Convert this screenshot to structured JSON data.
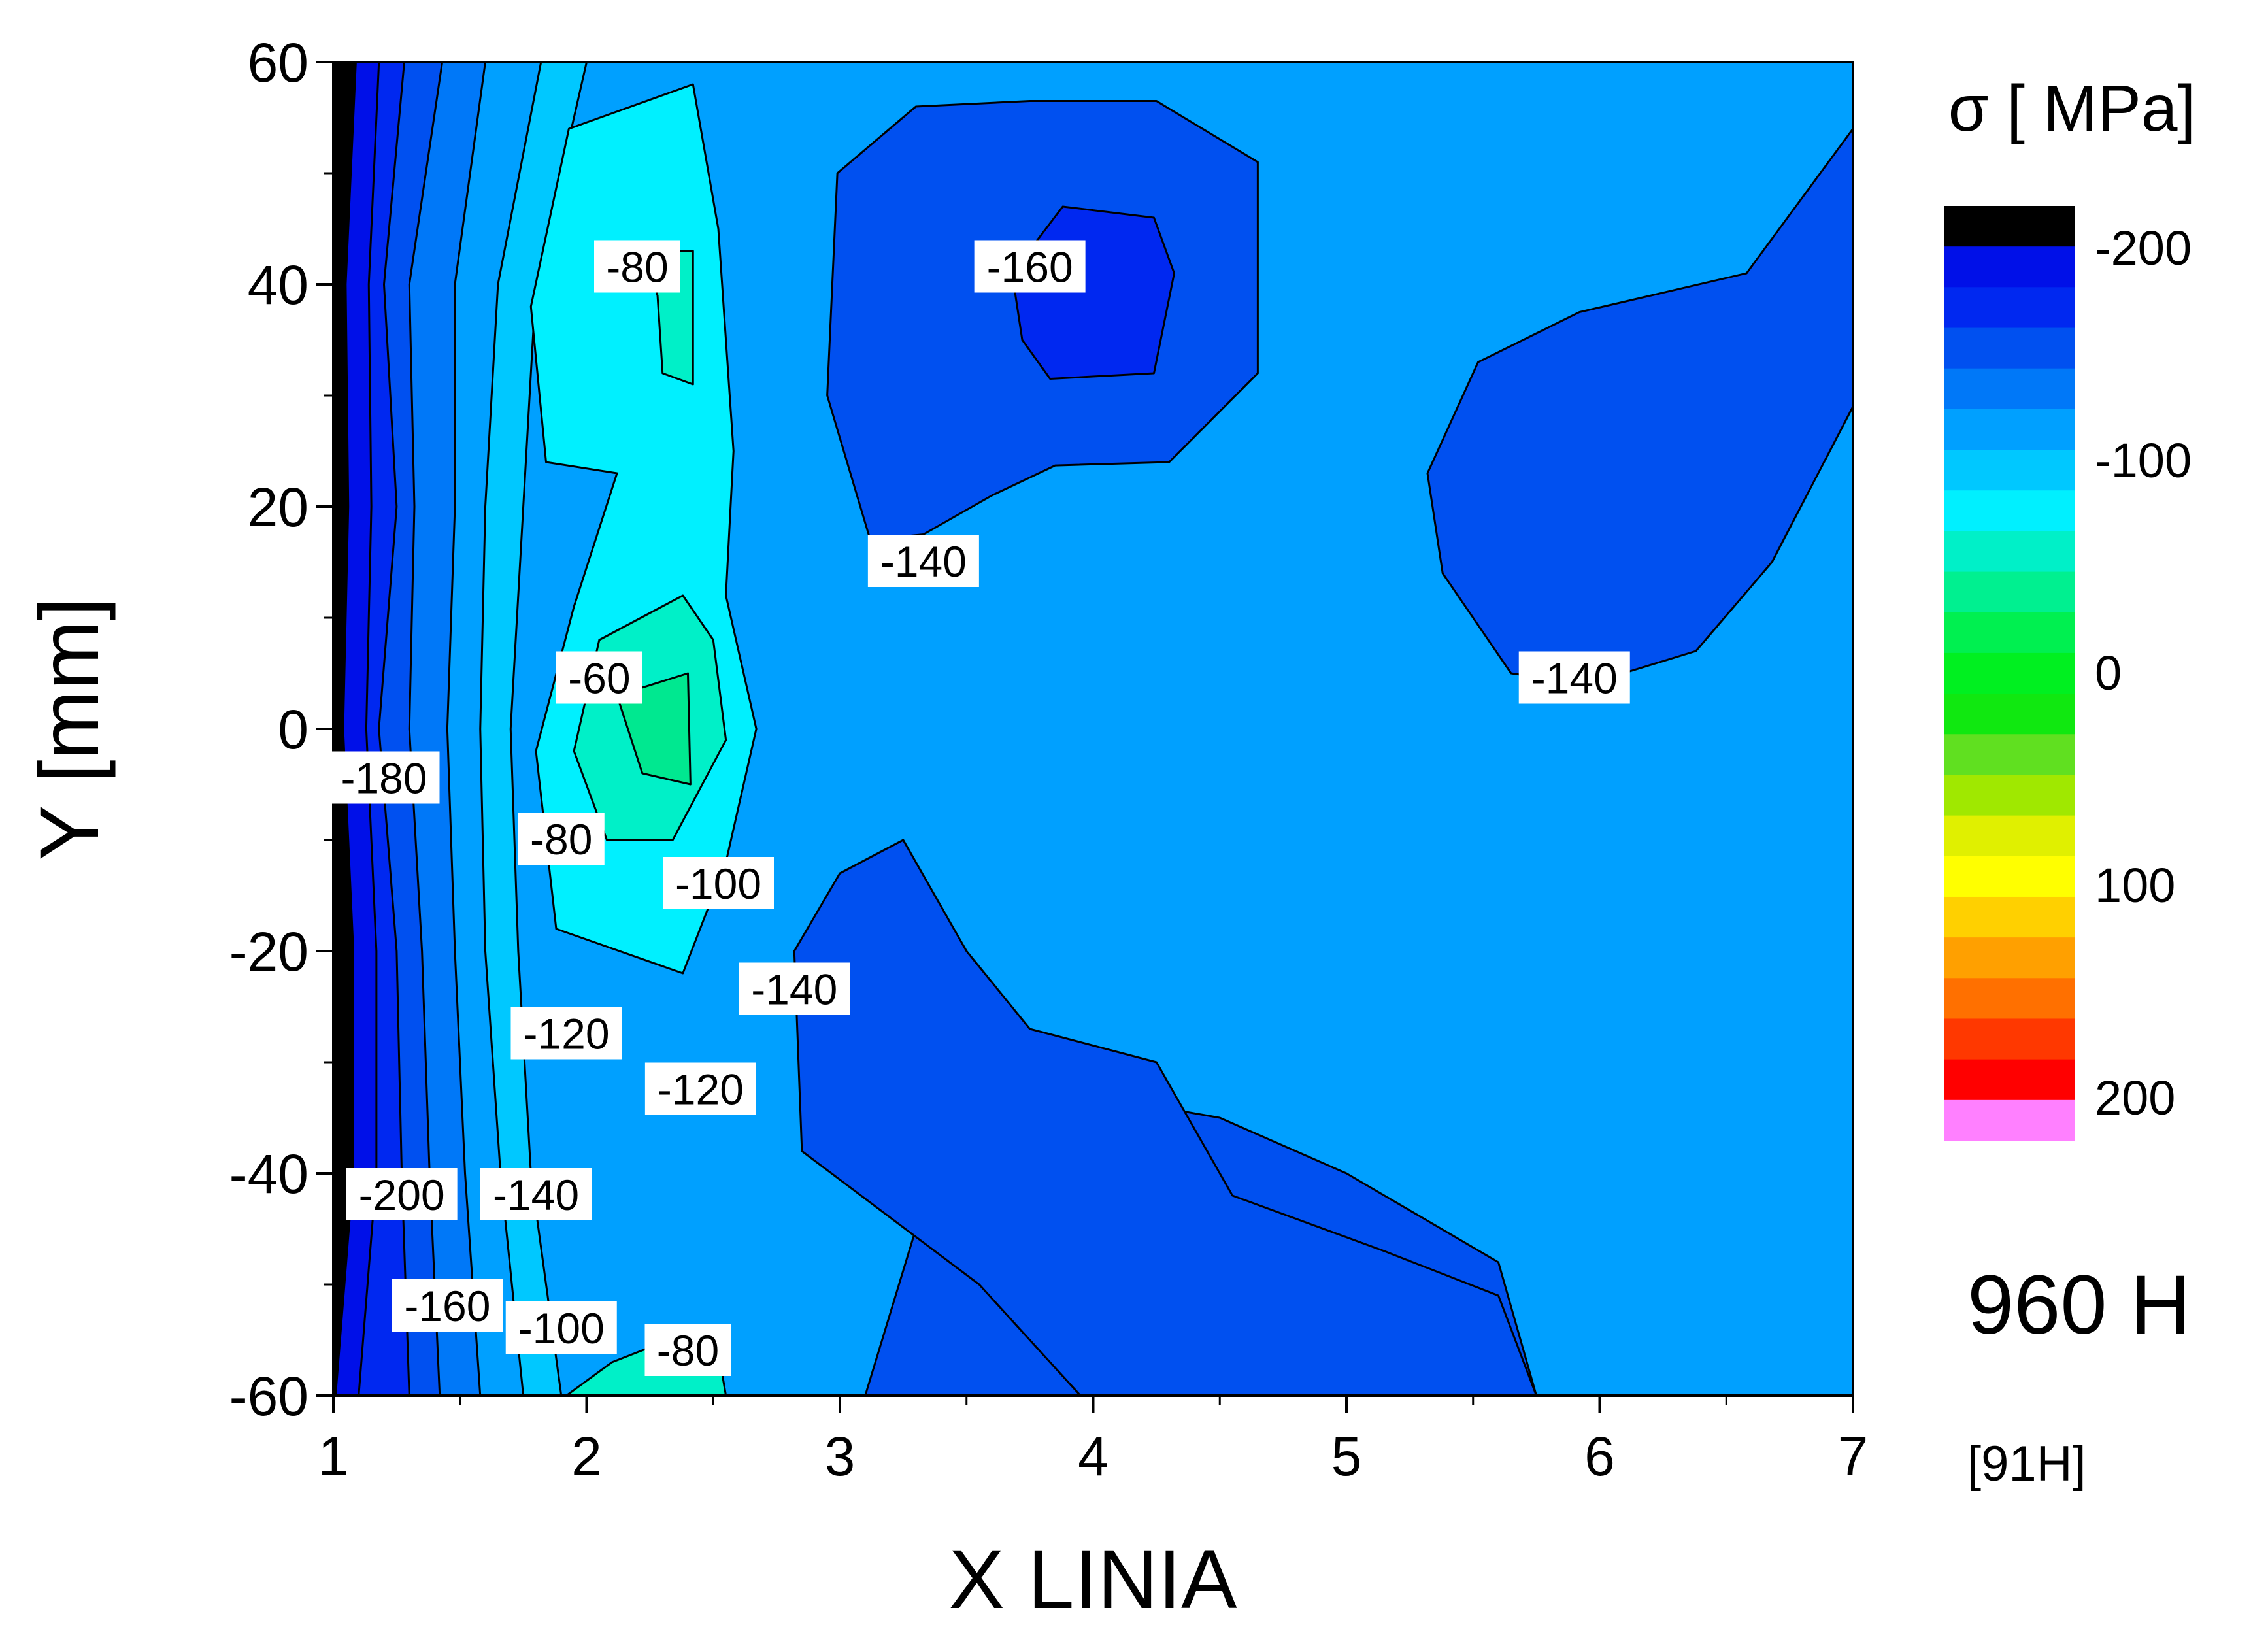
{
  "chart_data": {
    "type": "heatmap",
    "subtype": "filled-contour",
    "title": "",
    "xlabel": "X LINIA",
    "ylabel": "Y [mm]",
    "xlim": [
      1,
      7
    ],
    "ylim": [
      -60,
      60
    ],
    "x_ticks": [
      1,
      2,
      3,
      4,
      5,
      6,
      7
    ],
    "y_ticks": [
      -60,
      -40,
      -20,
      0,
      20,
      40,
      60
    ],
    "colorbar": {
      "title": "σ [ MPa]",
      "range": [
        -220,
        220
      ],
      "step": 20,
      "tick_labels": [
        "-200",
        "-100",
        "0",
        "100",
        "200"
      ],
      "tick_values": [
        -200,
        -100,
        0,
        100,
        200
      ],
      "colors": [
        "#000000",
        "#0010e8",
        "#0028f0",
        "#0050f0",
        "#0078f8",
        "#00a0ff",
        "#00c8ff",
        "#00f0ff",
        "#00f0c8",
        "#00f090",
        "#00f050",
        "#00f020",
        "#10e810",
        "#60e020",
        "#a0e800",
        "#e0f000",
        "#ffff00",
        "#ffd000",
        "#ffa000",
        "#ff7000",
        "#ff3800",
        "#ff0000",
        "#ff80ff"
      ]
    },
    "levels": [
      {
        "value": -200,
        "label": "-200",
        "color": "#0010e8"
      },
      {
        "value": -180,
        "label": "-180",
        "color": "#0028f0"
      },
      {
        "value": -160,
        "label": "-160",
        "color": "#0050f0"
      },
      {
        "value": -140,
        "label": "-140",
        "color": "#0078f8"
      },
      {
        "value": -120,
        "label": "-120",
        "color": "#00a0ff"
      },
      {
        "value": -100,
        "label": "-100",
        "color": "#00c8ff"
      },
      {
        "value": -80,
        "label": "-80",
        "color": "#00f0ff"
      },
      {
        "value": -60,
        "label": "-60",
        "color": "#00f0c8"
      }
    ],
    "contours": [
      {
        "level": -200,
        "fill": "#0010e8",
        "points": [
          [
            1.1,
            -60
          ],
          [
            1.17,
            -40
          ],
          [
            1.17,
            -20
          ],
          [
            1.13,
            0
          ],
          [
            1.15,
            20
          ],
          [
            1.14,
            40
          ],
          [
            1.18,
            60
          ],
          [
            1,
            60
          ],
          [
            1,
            -60
          ]
        ],
        "closed": false
      },
      {
        "level": -180,
        "fill": "#0028f0",
        "points": [
          [
            1.3,
            -60
          ],
          [
            1.27,
            -40
          ],
          [
            1.25,
            -20
          ],
          [
            1.18,
            0
          ],
          [
            1.25,
            20
          ],
          [
            1.2,
            40
          ],
          [
            1.28,
            60
          ]
        ],
        "closed": false
      },
      {
        "level": -160,
        "fill": "#0050f0",
        "points": [
          [
            1.42,
            -60
          ],
          [
            1.38,
            -40
          ],
          [
            1.35,
            -20
          ],
          [
            1.3,
            0
          ],
          [
            1.32,
            20
          ],
          [
            1.3,
            40
          ],
          [
            1.43,
            60
          ]
        ],
        "closed": false
      },
      {
        "level": -140,
        "fill": "#0078f8",
        "points": [
          [
            1.58,
            -60
          ],
          [
            1.52,
            -40
          ],
          [
            1.48,
            -20
          ],
          [
            1.45,
            0
          ],
          [
            1.48,
            20
          ],
          [
            1.48,
            40
          ],
          [
            1.6,
            60
          ]
        ],
        "closed": false
      },
      {
        "level": -120,
        "fill": "#00a0ff",
        "points": [
          [
            1.75,
            -60
          ],
          [
            1.66,
            -40
          ],
          [
            1.6,
            -20
          ],
          [
            1.58,
            0
          ],
          [
            1.6,
            20
          ],
          [
            1.65,
            40
          ],
          [
            1.82,
            60
          ]
        ],
        "closed": false
      },
      {
        "level": -100,
        "fill": "#00c8ff",
        "points": [
          [
            1.9,
            -60
          ],
          [
            1.78,
            -40
          ],
          [
            1.73,
            -20
          ],
          [
            1.7,
            0
          ],
          [
            1.75,
            20
          ],
          [
            1.8,
            40
          ],
          [
            2.0,
            60
          ]
        ],
        "closed": false
      }
    ],
    "regions": [
      {
        "level": -160,
        "fill": "#0050f0",
        "points": [
          [
            3.1,
            -60
          ],
          [
            3.3,
            -45
          ],
          [
            3.5,
            -35
          ],
          [
            4.0,
            -33
          ],
          [
            4.5,
            -35
          ],
          [
            5.0,
            -40
          ],
          [
            5.6,
            -48
          ],
          [
            5.75,
            -60
          ]
        ]
      },
      {
        "level": -160,
        "fill": "#0050f0",
        "points": [
          [
            3.25,
            -10
          ],
          [
            3.5,
            -20
          ],
          [
            3.75,
            -27
          ],
          [
            4.25,
            -30
          ],
          [
            4.55,
            -42
          ],
          [
            5.15,
            -47
          ],
          [
            5.6,
            -51
          ],
          [
            5.75,
            -60
          ],
          [
            3.95,
            -60
          ],
          [
            3.55,
            -50
          ],
          [
            2.85,
            -38
          ],
          [
            2.82,
            -20
          ],
          [
            3.0,
            -13
          ]
        ]
      },
      {
        "level": -140,
        "fill": "#0050f0",
        "points": [
          [
            3.12,
            17
          ],
          [
            2.95,
            30
          ],
          [
            2.99,
            50
          ],
          [
            3.3,
            56
          ],
          [
            3.75,
            56.5
          ],
          [
            4.25,
            56.5
          ],
          [
            4.65,
            51
          ],
          [
            4.65,
            32
          ],
          [
            4.3,
            24
          ],
          [
            3.85,
            23.7
          ],
          [
            3.6,
            21
          ],
          [
            3.33,
            17.5
          ]
        ]
      },
      {
        "level": -160,
        "fill": "#0028f0",
        "points": [
          [
            3.88,
            47
          ],
          [
            4.24,
            46
          ],
          [
            4.32,
            41
          ],
          [
            4.24,
            32
          ],
          [
            3.83,
            31.5
          ],
          [
            3.72,
            35
          ],
          [
            3.68,
            41
          ]
        ]
      },
      {
        "level": -140,
        "fill": "#0050f0",
        "points": [
          [
            5.65,
            5
          ],
          [
            5.38,
            14
          ],
          [
            5.32,
            23
          ],
          [
            5.52,
            33
          ],
          [
            5.92,
            37.5
          ],
          [
            6.58,
            41
          ],
          [
            7.0,
            54
          ],
          [
            7.0,
            29
          ],
          [
            6.68,
            15
          ],
          [
            6.38,
            7
          ],
          [
            5.95,
            4
          ]
        ]
      },
      {
        "level": -80,
        "fill": "#00f0ff",
        "points": [
          [
            2.42,
            58
          ],
          [
            1.93,
            54
          ],
          [
            1.78,
            38
          ],
          [
            1.84,
            24
          ],
          [
            2.12,
            23
          ],
          [
            1.95,
            11
          ],
          [
            1.8,
            -2
          ],
          [
            1.88,
            -18
          ],
          [
            2.38,
            -22
          ],
          [
            2.55,
            -12
          ],
          [
            2.67,
            0
          ],
          [
            2.55,
            12
          ],
          [
            2.58,
            25
          ],
          [
            2.52,
            45
          ]
        ]
      },
      {
        "level": -60,
        "fill": "#00f0c8",
        "points": [
          [
            2.22,
            43
          ],
          [
            2.42,
            43
          ],
          [
            2.42,
            31
          ],
          [
            2.3,
            32
          ],
          [
            2.28,
            39
          ]
        ]
      },
      {
        "level": -60,
        "fill": "#00f0c8",
        "points": [
          [
            2.38,
            12
          ],
          [
            2.05,
            8
          ],
          [
            1.95,
            -2
          ],
          [
            2.08,
            -10
          ],
          [
            2.34,
            -10
          ],
          [
            2.55,
            -1
          ],
          [
            2.5,
            8
          ]
        ]
      },
      {
        "level": -40,
        "fill": "#00e890",
        "points": [
          [
            2.4,
            5
          ],
          [
            2.12,
            3
          ],
          [
            2.22,
            -4
          ],
          [
            2.41,
            -5
          ]
        ]
      },
      {
        "level": -60,
        "fill": "#00f0c8",
        "points": [
          [
            1.92,
            -60
          ],
          [
            2.1,
            -57
          ],
          [
            2.38,
            -54.5
          ],
          [
            2.52,
            -56
          ],
          [
            2.55,
            -60
          ]
        ]
      }
    ],
    "labels": [
      {
        "text": "-80",
        "x": 2.2,
        "y": 41.5
      },
      {
        "text": "-160",
        "x": 3.75,
        "y": 41.5
      },
      {
        "text": "-140",
        "x": 3.33,
        "y": 15
      },
      {
        "text": "-60",
        "x": 2.05,
        "y": 4.5
      },
      {
        "text": "-140",
        "x": 5.9,
        "y": 4.5
      },
      {
        "text": "-180",
        "x": 1.2,
        "y": -4.5
      },
      {
        "text": "-80",
        "x": 1.9,
        "y": -10
      },
      {
        "text": "-100",
        "x": 2.52,
        "y": -14
      },
      {
        "text": "-140",
        "x": 2.82,
        "y": -23.5
      },
      {
        "text": "-120",
        "x": 1.92,
        "y": -27.5
      },
      {
        "text": "-120",
        "x": 2.45,
        "y": -32.5
      },
      {
        "text": "-200",
        "x": 1.27,
        "y": -42
      },
      {
        "text": "-140",
        "x": 1.8,
        "y": -42
      },
      {
        "text": "-160",
        "x": 1.45,
        "y": -52
      },
      {
        "text": "-100",
        "x": 1.9,
        "y": -54
      },
      {
        "text": "-80",
        "x": 2.4,
        "y": -56
      }
    ],
    "annotations": [
      "960 H",
      "[91H]"
    ]
  },
  "background_color": "#00a0ff",
  "sample_label": "960 H",
  "sample_code": "[91H]"
}
